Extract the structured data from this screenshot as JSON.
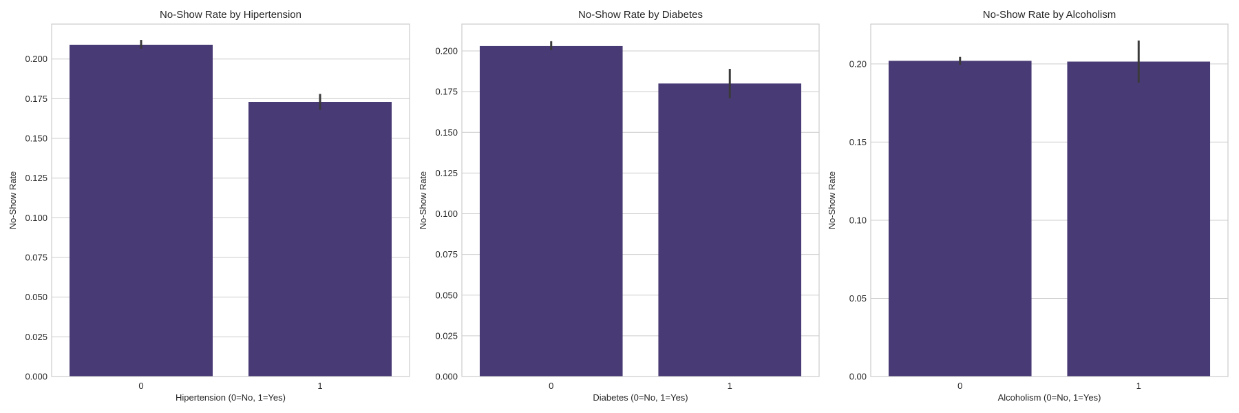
{
  "chart_data": [
    {
      "type": "bar",
      "title": "No-Show Rate by Hipertension",
      "xlabel": "Hipertension (0=No, 1=Yes)",
      "ylabel": "No-Show Rate",
      "categories": [
        "0",
        "1"
      ],
      "values": [
        0.209,
        0.173
      ],
      "errors": [
        [
          0.2065,
          0.212
        ],
        [
          0.168,
          0.178
        ]
      ],
      "ylim": [
        0,
        0.222
      ],
      "yticks": [
        0.0,
        0.025,
        0.05,
        0.075,
        0.1,
        0.125,
        0.15,
        0.175,
        0.2
      ],
      "ytick_labels": [
        "0.000",
        "0.025",
        "0.050",
        "0.075",
        "0.100",
        "0.125",
        "0.150",
        "0.175",
        "0.200"
      ],
      "grid": true,
      "color": "#483a74"
    },
    {
      "type": "bar",
      "title": "No-Show Rate by Diabetes",
      "xlabel": "Diabetes (0=No, 1=Yes)",
      "ylabel": "No-Show Rate",
      "categories": [
        "0",
        "1"
      ],
      "values": [
        0.203,
        0.18
      ],
      "errors": [
        [
          0.2005,
          0.206
        ],
        [
          0.171,
          0.189
        ]
      ],
      "ylim": [
        0,
        0.2165
      ],
      "yticks": [
        0.0,
        0.025,
        0.05,
        0.075,
        0.1,
        0.125,
        0.15,
        0.175,
        0.2
      ],
      "ytick_labels": [
        "0.000",
        "0.025",
        "0.050",
        "0.075",
        "0.100",
        "0.125",
        "0.150",
        "0.175",
        "0.200"
      ],
      "grid": true,
      "color": "#483a74"
    },
    {
      "type": "bar",
      "title": "No-Show Rate by Alcoholism",
      "xlabel": "Alcoholism (0=No, 1=Yes)",
      "ylabel": "No-Show Rate",
      "categories": [
        "0",
        "1"
      ],
      "values": [
        0.202,
        0.2015
      ],
      "errors": [
        [
          0.1995,
          0.2045
        ],
        [
          0.188,
          0.215
        ]
      ],
      "ylim": [
        0,
        0.2255
      ],
      "yticks": [
        0.0,
        0.05,
        0.1,
        0.15,
        0.2
      ],
      "ytick_labels": [
        "0.00",
        "0.05",
        "0.10",
        "0.15",
        "0.20"
      ],
      "grid": true,
      "color": "#483a74"
    }
  ]
}
